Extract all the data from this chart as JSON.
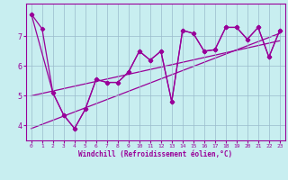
{
  "xlabel": "Windchill (Refroidissement éolien,°C)",
  "bg_color": "#c8eef0",
  "line_color": "#990099",
  "grid_color": "#99bbcc",
  "series1_x": [
    0,
    1,
    2,
    3,
    4,
    5,
    6,
    7,
    8,
    9,
    10,
    11,
    12,
    13,
    14,
    15,
    16,
    17,
    18,
    19,
    20,
    21,
    22,
    23
  ],
  "series1_y": [
    7.75,
    7.25,
    5.1,
    4.35,
    3.9,
    4.55,
    5.55,
    5.45,
    5.45,
    5.8,
    6.5,
    6.2,
    6.5,
    4.8,
    7.2,
    7.1,
    6.5,
    6.55,
    7.3,
    7.3,
    6.9,
    7.3,
    6.3,
    7.2
  ],
  "series2_x": [
    0,
    2,
    3,
    4,
    5,
    6,
    7,
    8,
    9,
    10,
    11,
    12,
    13,
    14,
    15,
    16,
    17,
    18,
    19,
    20,
    21,
    22,
    23
  ],
  "series2_y": [
    7.75,
    5.1,
    4.35,
    3.9,
    4.55,
    5.55,
    5.45,
    5.45,
    5.8,
    6.5,
    6.2,
    6.5,
    4.8,
    7.2,
    7.1,
    6.5,
    6.55,
    7.3,
    7.3,
    6.9,
    7.3,
    6.3,
    7.2
  ],
  "trend1_x": [
    0,
    23
  ],
  "trend1_y": [
    3.9,
    7.1
  ],
  "trend2_x": [
    0,
    23
  ],
  "trend2_y": [
    5.0,
    6.85
  ],
  "xlim": [
    -0.5,
    23.5
  ],
  "ylim": [
    3.5,
    8.1
  ],
  "yticks": [
    4,
    5,
    6,
    7
  ],
  "xticks": [
    0,
    1,
    2,
    3,
    4,
    5,
    6,
    7,
    8,
    9,
    10,
    11,
    12,
    13,
    14,
    15,
    16,
    17,
    18,
    19,
    20,
    21,
    22,
    23
  ]
}
